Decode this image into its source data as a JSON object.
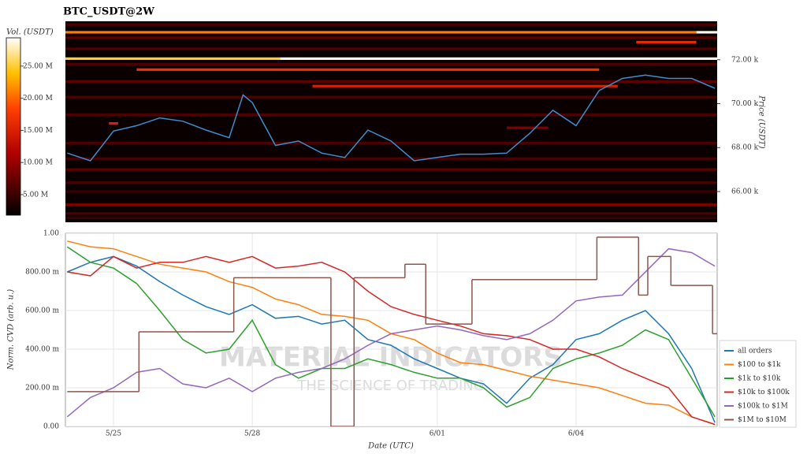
{
  "chart_data": [
    {
      "type": "heatmap",
      "title": "BTC_USDT@2W",
      "y_label": "Price (USDT)",
      "xlim": [
        -1.04,
        13.05
      ],
      "ylim": [
        64600,
        73750
      ],
      "yticks": [
        {
          "value": 66000,
          "label": "66.00 k"
        },
        {
          "value": 68000,
          "label": "68.00 k"
        },
        {
          "value": 70000,
          "label": "70.00 k"
        },
        {
          "value": 72000,
          "label": "72.00 k"
        }
      ],
      "colorbar": {
        "title": "Vol. (USDT)",
        "clim": [
          1800000,
          29400000
        ],
        "ticks": [
          {
            "value": 5000000,
            "label": "5.00 M"
          },
          {
            "value": 10000000,
            "label": "10.00 M"
          },
          {
            "value": 15000000,
            "label": "15.00 M"
          },
          {
            "value": 20000000,
            "label": "20.00 M"
          },
          {
            "value": 25000000,
            "label": "25.00 M"
          }
        ]
      },
      "levels": [
        {
          "price": 73600,
          "x0": -1.04,
          "x1": 13.05,
          "volume": 6000000
        },
        {
          "price": 73250,
          "x0": -1.04,
          "x1": 12.6,
          "volume": 21000000
        },
        {
          "price": 73250,
          "x0": 12.6,
          "x1": 13.05,
          "volume": 29000000
        },
        {
          "price": 73000,
          "x0": -1.04,
          "x1": 13.05,
          "volume": 7000000
        },
        {
          "price": 72800,
          "x0": 11.3,
          "x1": 12.6,
          "volume": 16000000
        },
        {
          "price": 72500,
          "x0": -1.04,
          "x1": 13.05,
          "volume": 6000000
        },
        {
          "price": 72050,
          "x0": -1.04,
          "x1": 3.6,
          "volume": 25000000
        },
        {
          "price": 72050,
          "x0": 3.6,
          "x1": 13.05,
          "volume": 29000000
        },
        {
          "price": 71800,
          "x0": -1.04,
          "x1": 13.05,
          "volume": 6000000
        },
        {
          "price": 71550,
          "x0": 0.5,
          "x1": 10.5,
          "volume": 17000000
        },
        {
          "price": 71000,
          "x0": -1.04,
          "x1": 13.05,
          "volume": 7000000
        },
        {
          "price": 70800,
          "x0": 4.3,
          "x1": 10.9,
          "volume": 15000000
        },
        {
          "price": 70300,
          "x0": -1.04,
          "x1": 13.05,
          "volume": 6000000
        },
        {
          "price": 69500,
          "x0": -1.04,
          "x1": 13.05,
          "volume": 6000000
        },
        {
          "price": 69100,
          "x0": -0.1,
          "x1": 0.1,
          "volume": 15000000
        },
        {
          "price": 68900,
          "x0": 8.5,
          "x1": 9.4,
          "volume": 9000000
        },
        {
          "price": 68200,
          "x0": -1.04,
          "x1": 13.05,
          "volume": 6000000
        },
        {
          "price": 67500,
          "x0": -1.04,
          "x1": 13.05,
          "volume": 6000000
        },
        {
          "price": 67000,
          "x0": -1.04,
          "x1": 13.05,
          "volume": 7000000
        },
        {
          "price": 66400,
          "x0": -1.04,
          "x1": 13.05,
          "volume": 6000000
        },
        {
          "price": 66000,
          "x0": -1.04,
          "x1": 13.05,
          "volume": 5000000
        },
        {
          "price": 65400,
          "x0": -1.04,
          "x1": 13.05,
          "volume": 9000000
        },
        {
          "price": 65000,
          "x0": -1.04,
          "x1": 13.05,
          "volume": 6000000
        },
        {
          "price": 64800,
          "x0": -1.04,
          "x1": 13.05,
          "volume": 5000000
        }
      ],
      "line": {
        "color": "#3a8fd0",
        "x": [
          -1,
          -0.5,
          0,
          0.5,
          1,
          1.5,
          2,
          2.5,
          2.8,
          3,
          3.5,
          4,
          4.5,
          5,
          5.5,
          6,
          6.5,
          7,
          7.5,
          8,
          8.5,
          9,
          9.5,
          10,
          10.5,
          11,
          11.5,
          12,
          12.5,
          13
        ],
        "values": [
          67750,
          67400,
          68750,
          69000,
          69350,
          69200,
          68800,
          68450,
          70400,
          70050,
          68100,
          68300,
          67750,
          67550,
          68800,
          68300,
          67400,
          67550,
          67700,
          67700,
          67750,
          68650,
          69700,
          69000,
          70600,
          71150,
          71300,
          71150,
          71150,
          70700
        ]
      }
    },
    {
      "type": "line",
      "x_label": "Date (UTC)",
      "y_label": "Norm. CVD (arb. u.)",
      "xlim": [
        -1.04,
        13.05
      ],
      "ylim": [
        0,
        1
      ],
      "xticks": [
        {
          "value": 0,
          "label": "5/25"
        },
        {
          "value": 3,
          "label": "5/28"
        },
        {
          "value": 7,
          "label": "6/01"
        },
        {
          "value": 10,
          "label": "6/04"
        }
      ],
      "yticks": [
        {
          "value": 0,
          "label": "0.00"
        },
        {
          "value": 0.2,
          "label": "200.00 m"
        },
        {
          "value": 0.4,
          "label": "400.00 m"
        },
        {
          "value": 0.6,
          "label": "600.00 m"
        },
        {
          "value": 0.8,
          "label": "800.00 m"
        },
        {
          "value": 1,
          "label": "1.00"
        }
      ],
      "grid": true,
      "legend": "right",
      "watermark": [
        "MATERIAL INDICATORS",
        "THE SCIENCE OF TRADING"
      ],
      "x": [
        -1,
        -0.5,
        0,
        0.5,
        1,
        1.5,
        2,
        2.5,
        3,
        3.5,
        4,
        4.5,
        5,
        5.5,
        6,
        6.5,
        7,
        7.5,
        8,
        8.5,
        9,
        9.5,
        10,
        10.5,
        11,
        11.5,
        12,
        12.5,
        13
      ],
      "series": [
        {
          "name": "all orders",
          "color": "#1f77b4",
          "values": [
            0.8,
            0.85,
            0.88,
            0.83,
            0.75,
            0.68,
            0.62,
            0.58,
            0.63,
            0.56,
            0.57,
            0.53,
            0.55,
            0.45,
            0.42,
            0.35,
            0.3,
            0.25,
            0.22,
            0.12,
            0.25,
            0.32,
            0.45,
            0.48,
            0.55,
            0.6,
            0.48,
            0.3,
            0.02
          ]
        },
        {
          "name": "$100 to $1k",
          "color": "#ff7f0e",
          "values": [
            0.96,
            0.93,
            0.92,
            0.88,
            0.84,
            0.82,
            0.8,
            0.75,
            0.72,
            0.66,
            0.63,
            0.58,
            0.57,
            0.55,
            0.48,
            0.45,
            0.38,
            0.33,
            0.32,
            0.29,
            0.26,
            0.24,
            0.22,
            0.2,
            0.16,
            0.12,
            0.11,
            0.05,
            0.01
          ]
        },
        {
          "name": "$1k to $10k",
          "color": "#2ca02c",
          "values": [
            0.93,
            0.85,
            0.82,
            0.74,
            0.6,
            0.45,
            0.38,
            0.4,
            0.55,
            0.32,
            0.25,
            0.3,
            0.3,
            0.35,
            0.32,
            0.28,
            0.25,
            0.25,
            0.2,
            0.1,
            0.15,
            0.3,
            0.35,
            0.38,
            0.42,
            0.5,
            0.45,
            0.25,
            0.05
          ]
        },
        {
          "name": "$10k to $100k",
          "color": "#d62728",
          "values": [
            0.8,
            0.78,
            0.88,
            0.82,
            0.85,
            0.85,
            0.88,
            0.85,
            0.88,
            0.82,
            0.83,
            0.85,
            0.8,
            0.7,
            0.62,
            0.58,
            0.55,
            0.52,
            0.48,
            0.47,
            0.45,
            0.4,
            0.4,
            0.36,
            0.3,
            0.25,
            0.2,
            0.05,
            0.01
          ]
        },
        {
          "name": "$100k to $1M",
          "color": "#9467bd",
          "values": [
            0.05,
            0.15,
            0.2,
            0.28,
            0.3,
            0.22,
            0.2,
            0.25,
            0.18,
            0.25,
            0.28,
            0.3,
            0.35,
            0.42,
            0.48,
            0.5,
            0.52,
            0.5,
            0.47,
            0.45,
            0.48,
            0.55,
            0.65,
            0.67,
            0.68,
            0.8,
            0.92,
            0.9,
            0.83
          ]
        },
        {
          "name": "$1M to $10M",
          "color": "#8c564b",
          "step": "post",
          "x": [
            -1,
            0.55,
            2.6,
            4.7,
            5.2,
            6.3,
            6.75,
            7.75,
            10.45,
            11.35,
            11.55,
            12.05,
            12.95
          ],
          "values": [
            0.18,
            0.49,
            0.77,
            0,
            0.77,
            0.84,
            0.53,
            0.76,
            0.98,
            0.68,
            0.88,
            0.73,
            0.48
          ]
        }
      ]
    }
  ]
}
